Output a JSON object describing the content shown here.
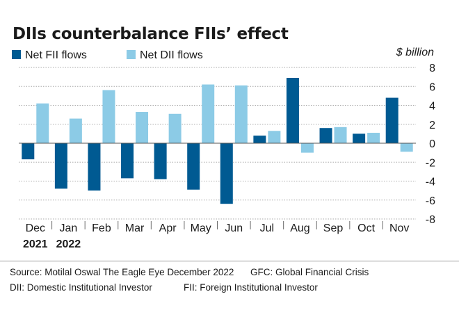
{
  "title": "DIIs counterbalance FIIs’ effect",
  "footer": {
    "source": "Source: Motilal Oswal The Eagle Eye December 2022",
    "gfc_note": "GFC: Global Financial Crisis",
    "dii_note": "DII: Domestic Institutional Investor",
    "fii_note": "FII: Foreign Institutional Investor"
  },
  "chart_data": {
    "type": "bar",
    "title": "DIIs counterbalance FIIs’ effect",
    "unit_label": "$ billion",
    "categories": [
      "Dec",
      "Jan",
      "Feb",
      "Mar",
      "Apr",
      "May",
      "Jun",
      "Jul",
      "Aug",
      "Sep",
      "Oct",
      "Nov"
    ],
    "year_labels": [
      {
        "label": "2021",
        "category": "Dec"
      },
      {
        "label": "2022",
        "category": "Jan"
      }
    ],
    "series": [
      {
        "name": "Net FII flows",
        "color": "#005a92",
        "values": [
          -1.7,
          -4.8,
          -5.0,
          -3.7,
          -3.8,
          -4.9,
          -6.4,
          0.8,
          6.9,
          1.6,
          1.0,
          4.8
        ]
      },
      {
        "name": "Net DII flows",
        "color": "#8ccbe6",
        "values": [
          4.2,
          2.6,
          5.6,
          3.3,
          3.1,
          6.2,
          6.1,
          1.3,
          -1.0,
          1.7,
          1.1,
          -0.9
        ]
      }
    ],
    "yticks": [
      8,
      6,
      4,
      2,
      0,
      -2,
      -4,
      -6,
      -8
    ],
    "ylim": [
      -8,
      8
    ],
    "grid": true,
    "legend_position": "top-left",
    "axis_position": "right"
  }
}
